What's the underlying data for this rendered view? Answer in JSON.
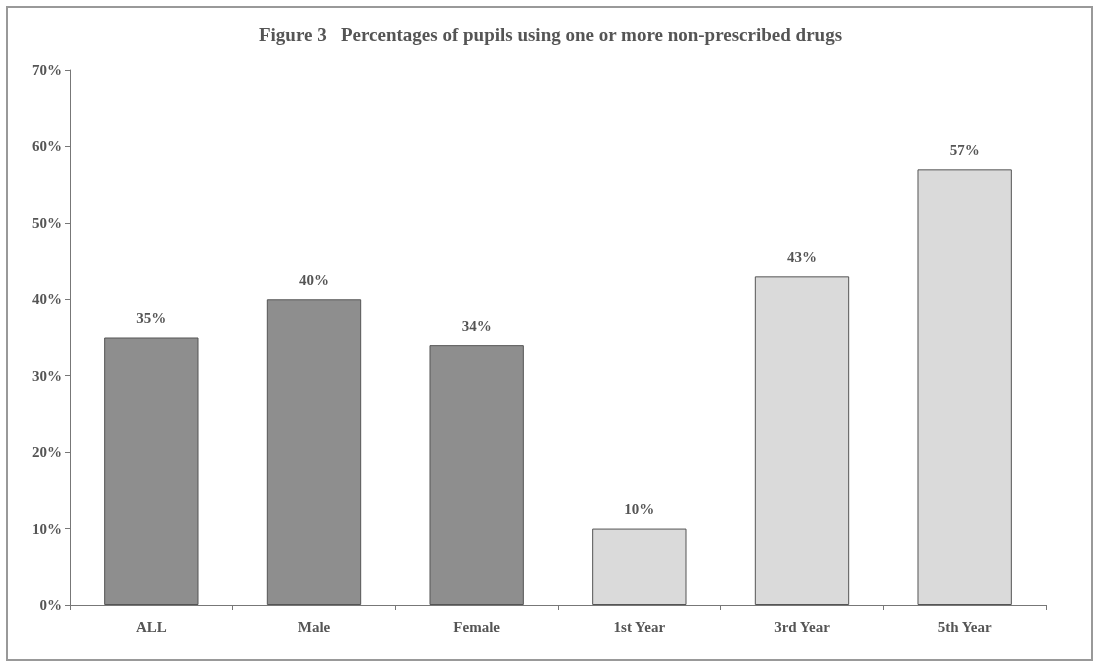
{
  "chart_data": {
    "type": "bar",
    "title": "Figure 3   Percentages of pupils using one or more non-prescribed drugs",
    "categories": [
      "ALL",
      "Male",
      "Female",
      "1st Year",
      "3rd Year",
      "5th Year"
    ],
    "values": [
      35,
      40,
      34,
      10,
      43,
      57
    ],
    "value_labels": [
      "35%",
      "40%",
      "34%",
      "10%",
      "43%",
      "57%"
    ],
    "colors": [
      "#8e8e8e",
      "#8e8e8e",
      "#8e8e8e",
      "#dadada",
      "#dadada",
      "#dadada"
    ],
    "ylim": [
      0,
      70
    ],
    "yticks": [
      {
        "value": 0,
        "label": "0%"
      },
      {
        "value": 10,
        "label": "10%"
      },
      {
        "value": 20,
        "label": "20%"
      },
      {
        "value": 30,
        "label": "30%"
      },
      {
        "value": 40,
        "label": "40%"
      },
      {
        "value": 50,
        "label": "50%"
      },
      {
        "value": 60,
        "label": "60%"
      },
      {
        "value": 70,
        "label": "70%"
      }
    ]
  }
}
